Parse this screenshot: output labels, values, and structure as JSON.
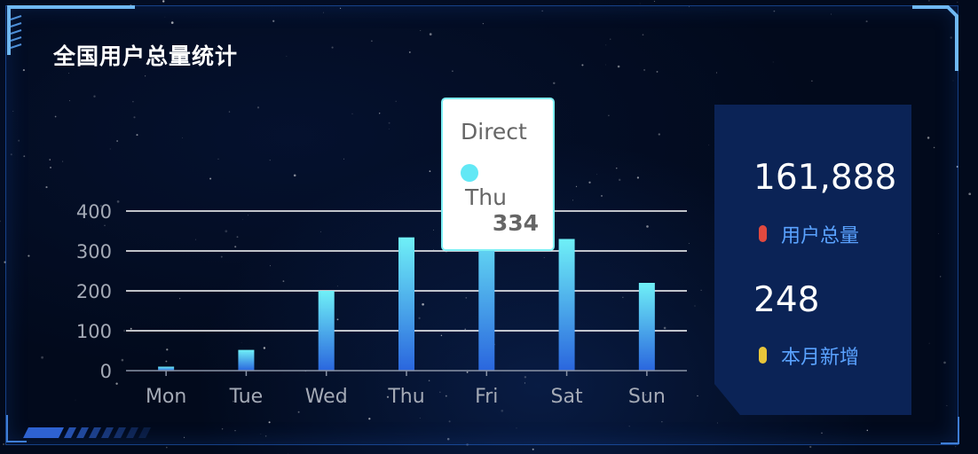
{
  "panel": {
    "title": "全国用户总量统计"
  },
  "chart_data": {
    "type": "bar",
    "categories": [
      "Mon",
      "Tue",
      "Wed",
      "Thu",
      "Fri",
      "Sat",
      "Sun"
    ],
    "series": [
      {
        "name": "Direct",
        "values": [
          10,
          52,
          200,
          334,
          390,
          330,
          220
        ]
      }
    ],
    "ylim": [
      0,
      400
    ],
    "yticks": [
      0,
      100,
      200,
      300,
      400
    ],
    "grid": true,
    "bar_gradient": [
      "#6ff0f7",
      "#2a66de"
    ],
    "axis_label_color": "#a4aab6"
  },
  "tooltip": {
    "series": "Direct",
    "category": "Thu",
    "value": "334",
    "marker_color": "#62e8f5"
  },
  "stats": [
    {
      "value": "161,888",
      "label": "用户总量",
      "dot_color": "#e0493f"
    },
    {
      "value": "248",
      "label": "本月新增",
      "dot_color": "#e8c53a"
    }
  ]
}
